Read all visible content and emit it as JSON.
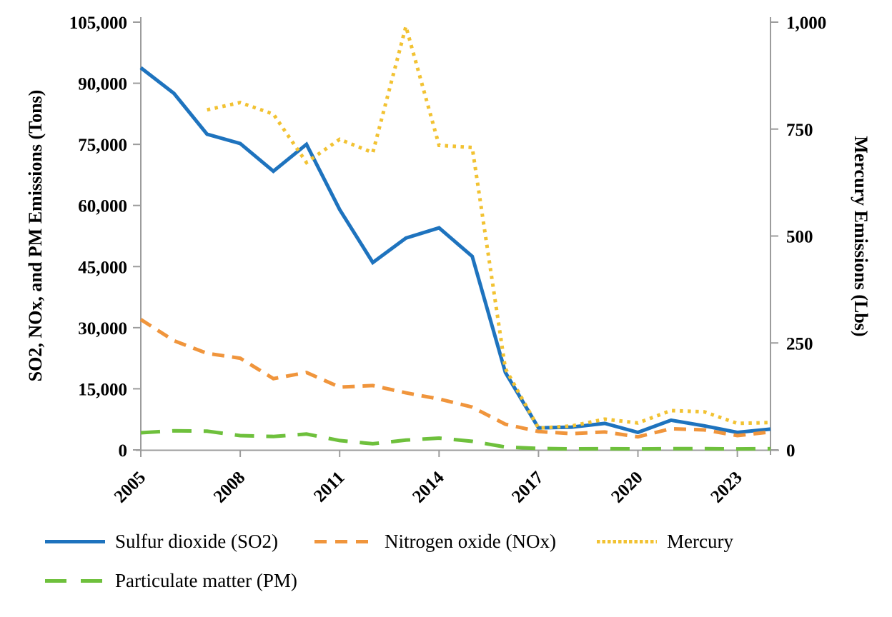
{
  "chart_data": {
    "type": "line",
    "title": "",
    "x": [
      2005,
      2006,
      2007,
      2008,
      2009,
      2010,
      2011,
      2012,
      2013,
      2014,
      2015,
      2016,
      2017,
      2018,
      2019,
      2020,
      2021,
      2022,
      2023,
      2024
    ],
    "series": [
      {
        "name": "Sulfur dioxide (SO2)",
        "axis": "left",
        "color": "#1E73BE",
        "style": "solid",
        "values": [
          93800,
          87500,
          77500,
          75200,
          68400,
          75000,
          59000,
          46000,
          52000,
          54500,
          47500,
          19000,
          5400,
          5600,
          6500,
          4300,
          7300,
          5900,
          4300,
          5100
        ]
      },
      {
        "name": "Nitrogen oxide (NOx)",
        "axis": "left",
        "color": "#F0953C",
        "style": "dashed",
        "values": [
          32000,
          26800,
          23700,
          22500,
          17500,
          19000,
          15400,
          15800,
          14000,
          12500,
          10500,
          6300,
          4500,
          4000,
          4400,
          3200,
          5200,
          4900,
          3500,
          4400
        ]
      },
      {
        "name": "Mercury",
        "axis": "right",
        "color": "#F2C232",
        "style": "dotted",
        "values": [
          null,
          null,
          795,
          812,
          785,
          672,
          726,
          695,
          990,
          712,
          707,
          190,
          51,
          56,
          72,
          63,
          92,
          89,
          62,
          64
        ]
      },
      {
        "name": "Particulate matter (PM)",
        "axis": "left",
        "color": "#6EC03C",
        "style": "long-dash",
        "values": [
          4200,
          4700,
          4600,
          3500,
          3300,
          3900,
          2300,
          1500,
          2400,
          2900,
          2100,
          700,
          350,
          250,
          300,
          250,
          300,
          300,
          250,
          300
        ]
      }
    ],
    "left_axis": {
      "label": "SO2, NOx, and PM Emissions (Tons)",
      "min": 0,
      "max": 105000,
      "tick_step": 15000,
      "tick_labels": [
        "0",
        "15,000",
        "30,000",
        "45,000",
        "60,000",
        "75,000",
        "90,000",
        "105,000"
      ]
    },
    "right_axis": {
      "label": "Mercury Emissions (Lbs)",
      "min": 0,
      "max": 1000,
      "tick_step": 250,
      "tick_labels": [
        "0",
        "250",
        "500",
        "750",
        "1,000"
      ]
    },
    "x_axis": {
      "tick_years": [
        2005,
        2008,
        2011,
        2014,
        2017,
        2020,
        2023
      ],
      "tick_labels": [
        "2005",
        "2008",
        "2011",
        "2014",
        "2017",
        "2020",
        "2023"
      ]
    },
    "axis_color": "#9C9C9C",
    "legend_position": "bottom-left",
    "grid": "off"
  }
}
